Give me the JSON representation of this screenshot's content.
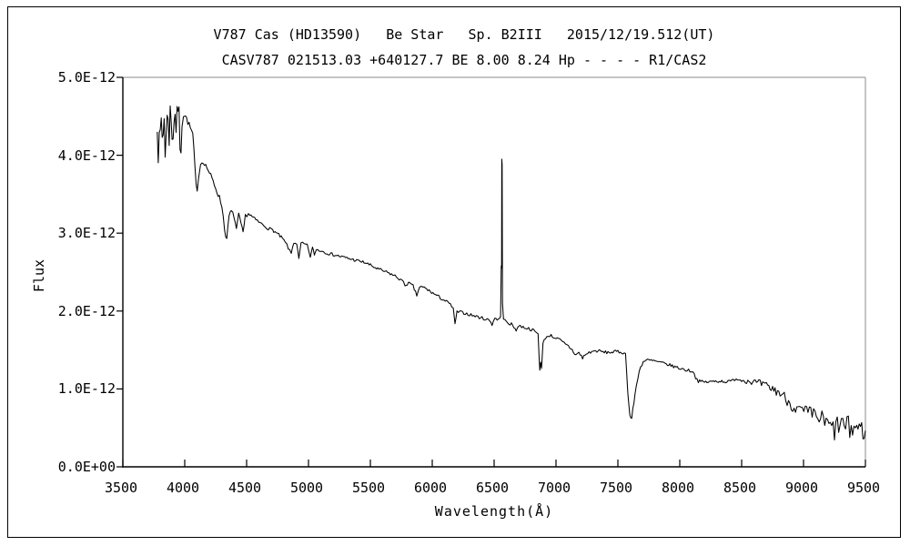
{
  "titles": {
    "line1": "V787 Cas (HD13590)   Be Star   Sp. B2III   2015/12/19.512(UT)",
    "line2": "CASV787 021513.03 +640127.7 BE 8.00 8.24 Hp - - - - R1/CAS2"
  },
  "colors": {
    "trace": "#000000",
    "axis_main": "#000000",
    "axis_box_light": "#8c8c8c",
    "background": "#ffffff"
  },
  "chart_data": {
    "type": "line",
    "title": "V787 Cas (HD13590)  Be Star  Sp. B2III  2015/12/19.512(UT)",
    "subtitle": "CASV787 021513.03 +640127.7 BE 8.00 8.24 Hp - - - - R1/CAS2",
    "xlabel": "Wavelength(Å)",
    "ylabel": "Flux",
    "xlim": [
      3500,
      9500
    ],
    "ylim_flux_1e12": [
      0,
      5.0
    ],
    "grid": false,
    "legend": false,
    "x_ticks": [
      3500,
      4000,
      4500,
      5000,
      5500,
      6000,
      6500,
      7000,
      7500,
      8000,
      8500,
      9000,
      9500
    ],
    "y_ticks": [
      {
        "value_1e12": 0,
        "label": "0.0E+00"
      },
      {
        "value_1e12": 1,
        "label": "1.0E-12"
      },
      {
        "value_1e12": 2,
        "label": "2.0E-12"
      },
      {
        "value_1e12": 3,
        "label": "3.0E-12"
      },
      {
        "value_1e12": 4,
        "label": "4.0E-12"
      },
      {
        "value_1e12": 5,
        "label": "5.0E-12"
      }
    ],
    "flux_scale": "values given in units of 1e-12",
    "features": [
      {
        "kind": "emission-spike",
        "wavelength": 6563,
        "peak_flux_1e12": 3.95
      },
      {
        "kind": "absorption-dip",
        "wavelength": 4101,
        "min_flux_1e12": 3.52
      },
      {
        "kind": "absorption-dip",
        "wavelength": 4340,
        "min_flux_1e12": 2.92
      },
      {
        "kind": "absorption-dip",
        "wavelength": 4471,
        "min_flux_1e12": 2.99
      },
      {
        "kind": "absorption-dip",
        "wavelength": 4861,
        "min_flux_1e12": 2.74
      },
      {
        "kind": "absorption-dip",
        "wavelength": 5875,
        "min_flux_1e12": 2.2
      },
      {
        "kind": "absorption-dip",
        "wavelength": 6869,
        "min_flux_1e12": 1.24
      },
      {
        "kind": "absorption-dip",
        "wavelength": 7604,
        "min_flux_1e12": 0.62
      },
      {
        "kind": "absorption-step",
        "wavelength": 8130,
        "min_flux_1e12": 1.1
      }
    ],
    "series": [
      {
        "name": "spectrum",
        "x_unit": "Angstrom",
        "points_lambda_flux1e12_noise": [
          [
            3778,
            4.3,
            0.05
          ],
          [
            3786,
            4.1,
            0.2
          ],
          [
            3794,
            4.45,
            0.18
          ],
          [
            3802,
            4.12,
            0.22
          ],
          [
            3810,
            4.4,
            0.2
          ],
          [
            3818,
            4.22,
            0.22
          ],
          [
            3826,
            4.3,
            0.2
          ],
          [
            3834,
            4.48,
            0.15
          ],
          [
            3842,
            4.08,
            0.2
          ],
          [
            3850,
            4.25,
            0.18
          ],
          [
            3858,
            4.45,
            0.14
          ],
          [
            3866,
            4.52,
            0.12
          ],
          [
            3874,
            4.25,
            0.18
          ],
          [
            3882,
            4.58,
            0.1
          ],
          [
            3890,
            4.45,
            0.14
          ],
          [
            3898,
            4.3,
            0.16
          ],
          [
            3906,
            4.25,
            0.16
          ],
          [
            3914,
            4.48,
            0.12
          ],
          [
            3922,
            4.52,
            0.1
          ],
          [
            3930,
            4.35,
            0.14
          ],
          [
            3938,
            4.55,
            0.08
          ],
          [
            3946,
            4.6,
            0.07
          ],
          [
            3954,
            4.56,
            0.08
          ],
          [
            3962,
            4.15,
            0.12
          ],
          [
            3970,
            4.1,
            0.1
          ],
          [
            3978,
            4.42,
            0.08
          ],
          [
            3990,
            4.52,
            0.06
          ],
          [
            4005,
            4.5,
            0.05
          ],
          [
            4025,
            4.43,
            0.04
          ],
          [
            4045,
            4.35,
            0.04
          ],
          [
            4065,
            4.27,
            0.04
          ],
          [
            4082,
            3.85,
            0.05
          ],
          [
            4092,
            3.6,
            0.04
          ],
          [
            4101,
            3.52,
            0.03
          ],
          [
            4112,
            3.74,
            0.04
          ],
          [
            4128,
            3.89,
            0.03
          ],
          [
            4150,
            3.92,
            0.03
          ],
          [
            4180,
            3.84,
            0.03
          ],
          [
            4210,
            3.74,
            0.03
          ],
          [
            4240,
            3.62,
            0.03
          ],
          [
            4270,
            3.5,
            0.04
          ],
          [
            4300,
            3.36,
            0.04
          ],
          [
            4322,
            3.05,
            0.04
          ],
          [
            4340,
            2.92,
            0.03
          ],
          [
            4358,
            3.22,
            0.03
          ],
          [
            4376,
            3.28,
            0.03
          ],
          [
            4400,
            3.21,
            0.03
          ],
          [
            4418,
            3.05,
            0.03
          ],
          [
            4436,
            3.23,
            0.03
          ],
          [
            4455,
            3.12,
            0.03
          ],
          [
            4471,
            2.99,
            0.03
          ],
          [
            4490,
            3.22,
            0.03
          ],
          [
            4515,
            3.25,
            0.02
          ],
          [
            4545,
            3.21,
            0.02
          ],
          [
            4575,
            3.17,
            0.02
          ],
          [
            4610,
            3.13,
            0.02
          ],
          [
            4640,
            3.1,
            0.02
          ],
          [
            4675,
            3.06,
            0.02
          ],
          [
            4710,
            3.04,
            0.02
          ],
          [
            4750,
            2.99,
            0.02
          ],
          [
            4790,
            2.93,
            0.02
          ],
          [
            4825,
            2.85,
            0.02
          ],
          [
            4848,
            2.77,
            0.02
          ],
          [
            4861,
            2.74,
            0.02
          ],
          [
            4880,
            2.88,
            0.02
          ],
          [
            4905,
            2.87,
            0.02
          ],
          [
            4922,
            2.66,
            0.02
          ],
          [
            4940,
            2.87,
            0.02
          ],
          [
            4965,
            2.86,
            0.02
          ],
          [
            4990,
            2.84,
            0.02
          ],
          [
            5015,
            2.7,
            0.02
          ],
          [
            5032,
            2.81,
            0.02
          ],
          [
            5048,
            2.73,
            0.02
          ],
          [
            5065,
            2.79,
            0.02
          ],
          [
            5110,
            2.77,
            0.02
          ],
          [
            5160,
            2.74,
            0.02
          ],
          [
            5210,
            2.72,
            0.02
          ],
          [
            5260,
            2.7,
            0.02
          ],
          [
            5310,
            2.68,
            0.02
          ],
          [
            5360,
            2.66,
            0.02
          ],
          [
            5410,
            2.64,
            0.02
          ],
          [
            5460,
            2.62,
            0.02
          ],
          [
            5510,
            2.58,
            0.02
          ],
          [
            5560,
            2.54,
            0.02
          ],
          [
            5610,
            2.51,
            0.02
          ],
          [
            5660,
            2.48,
            0.02
          ],
          [
            5710,
            2.44,
            0.02
          ],
          [
            5755,
            2.39,
            0.02
          ],
          [
            5780,
            2.33,
            0.02
          ],
          [
            5808,
            2.36,
            0.02
          ],
          [
            5845,
            2.32,
            0.02
          ],
          [
            5875,
            2.2,
            0.02
          ],
          [
            5898,
            2.31,
            0.02
          ],
          [
            5935,
            2.3,
            0.02
          ],
          [
            5975,
            2.26,
            0.02
          ],
          [
            6015,
            2.22,
            0.02
          ],
          [
            6055,
            2.18,
            0.02
          ],
          [
            6095,
            2.14,
            0.02
          ],
          [
            6135,
            2.1,
            0.02
          ],
          [
            6170,
            2.04,
            0.02
          ],
          [
            6184,
            1.82,
            0.02
          ],
          [
            6200,
            1.99,
            0.02
          ],
          [
            6245,
            1.98,
            0.02
          ],
          [
            6290,
            1.96,
            0.02
          ],
          [
            6335,
            1.94,
            0.02
          ],
          [
            6380,
            1.92,
            0.02
          ],
          [
            6425,
            1.9,
            0.02
          ],
          [
            6465,
            1.88,
            0.02
          ],
          [
            6483,
            1.83,
            0.02
          ],
          [
            6505,
            1.91,
            0.02
          ],
          [
            6535,
            1.89,
            0.02
          ],
          [
            6552,
            1.93,
            0.01
          ],
          [
            6557,
            2.58,
            0
          ],
          [
            6560,
            2.55,
            0
          ],
          [
            6562,
            3.95,
            0
          ],
          [
            6565,
            3.88,
            0
          ],
          [
            6568,
            2.1,
            0
          ],
          [
            6576,
            1.9,
            0.01
          ],
          [
            6600,
            1.86,
            0.02
          ],
          [
            6640,
            1.83,
            0.02
          ],
          [
            6678,
            1.76,
            0.02
          ],
          [
            6700,
            1.81,
            0.02
          ],
          [
            6745,
            1.79,
            0.02
          ],
          [
            6790,
            1.77,
            0.02
          ],
          [
            6830,
            1.74,
            0.02
          ],
          [
            6855,
            1.7,
            0.02
          ],
          [
            6864,
            1.4,
            0.02
          ],
          [
            6869,
            1.24,
            0.02
          ],
          [
            6876,
            1.36,
            0.02
          ],
          [
            6883,
            1.26,
            0.02
          ],
          [
            6895,
            1.58,
            0.02
          ],
          [
            6915,
            1.66,
            0.02
          ],
          [
            6950,
            1.69,
            0.02
          ],
          [
            6990,
            1.66,
            0.02
          ],
          [
            7030,
            1.63,
            0.02
          ],
          [
            7065,
            1.58,
            0.03
          ],
          [
            7100,
            1.55,
            0.02
          ],
          [
            7130,
            1.5,
            0.03
          ],
          [
            7160,
            1.44,
            0.03
          ],
          [
            7185,
            1.46,
            0.03
          ],
          [
            7215,
            1.4,
            0.03
          ],
          [
            7245,
            1.45,
            0.02
          ],
          [
            7290,
            1.48,
            0.02
          ],
          [
            7340,
            1.49,
            0.02
          ],
          [
            7390,
            1.47,
            0.02
          ],
          [
            7440,
            1.47,
            0.02
          ],
          [
            7490,
            1.48,
            0.02
          ],
          [
            7530,
            1.47,
            0.02
          ],
          [
            7562,
            1.45,
            0.01
          ],
          [
            7580,
            0.95,
            0
          ],
          [
            7596,
            0.66,
            0.02
          ],
          [
            7612,
            0.62,
            0.03
          ],
          [
            7638,
            0.93,
            0.03
          ],
          [
            7672,
            1.24,
            0.02
          ],
          [
            7705,
            1.35,
            0.02
          ],
          [
            7740,
            1.37,
            0.02
          ],
          [
            7790,
            1.36,
            0.02
          ],
          [
            7840,
            1.34,
            0.02
          ],
          [
            7890,
            1.32,
            0.02
          ],
          [
            7930,
            1.3,
            0.02
          ],
          [
            7970,
            1.28,
            0.02
          ],
          [
            8010,
            1.26,
            0.02
          ],
          [
            8060,
            1.24,
            0.02
          ],
          [
            8105,
            1.23,
            0.02
          ],
          [
            8128,
            1.15,
            0.02
          ],
          [
            8150,
            1.1,
            0.02
          ],
          [
            8190,
            1.09,
            0.02
          ],
          [
            8240,
            1.09,
            0.02
          ],
          [
            8290,
            1.1,
            0.02
          ],
          [
            8340,
            1.1,
            0.02
          ],
          [
            8390,
            1.09,
            0.02
          ],
          [
            8430,
            1.11,
            0.02
          ],
          [
            8455,
            1.14,
            0.02
          ],
          [
            8480,
            1.12,
            0.03
          ],
          [
            8520,
            1.11,
            0.03
          ],
          [
            8560,
            1.1,
            0.04
          ],
          [
            8600,
            1.09,
            0.04
          ],
          [
            8640,
            1.07,
            0.05
          ],
          [
            8680,
            1.05,
            0.05
          ],
          [
            8720,
            1.02,
            0.06
          ],
          [
            8760,
            0.99,
            0.06
          ],
          [
            8800,
            0.96,
            0.07
          ],
          [
            8845,
            0.9,
            0.07
          ],
          [
            8890,
            0.82,
            0.08
          ],
          [
            8935,
            0.75,
            0.08
          ],
          [
            8980,
            0.72,
            0.08
          ],
          [
            9025,
            0.7,
            0.09
          ],
          [
            9070,
            0.67,
            0.1
          ],
          [
            9115,
            0.64,
            0.11
          ],
          [
            9160,
            0.59,
            0.13
          ],
          [
            9205,
            0.52,
            0.14
          ],
          [
            9250,
            0.47,
            0.15
          ],
          [
            9295,
            0.56,
            0.15
          ],
          [
            9340,
            0.51,
            0.16
          ],
          [
            9385,
            0.48,
            0.16
          ],
          [
            9430,
            0.52,
            0.15
          ],
          [
            9470,
            0.48,
            0.13
          ],
          [
            9500,
            0.4,
            0.09
          ]
        ]
      }
    ]
  }
}
